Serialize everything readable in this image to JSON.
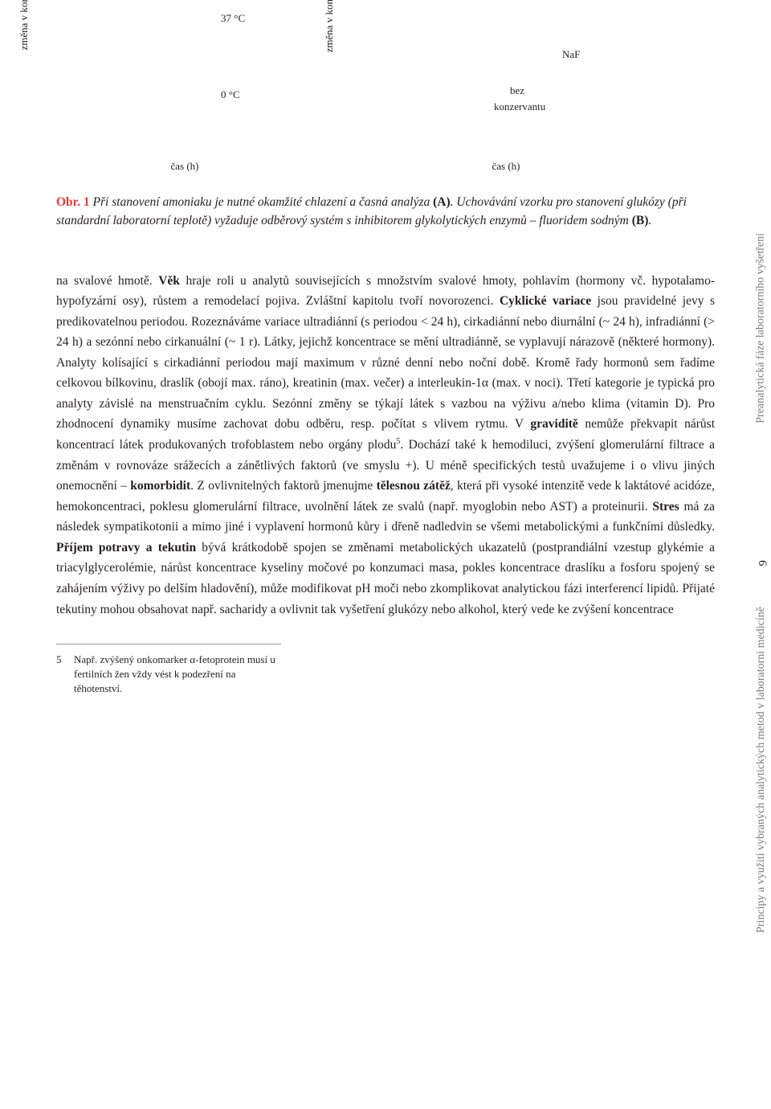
{
  "chart_a": {
    "y_label": "změna v koncentraci amoniaku (%)",
    "x_label": "čas (h)",
    "label_37c": "37 °C",
    "label_0c": "0 °C"
  },
  "chart_b": {
    "y_label": "změna v koncentraci glukózy (%)",
    "x_label": "čas (h)",
    "label_naf": "NaF",
    "label_bez": "bez",
    "label_konz": "konzervantu"
  },
  "figure": {
    "label": "Obr. 1",
    "caption_part1": "Při stanovení amoniaku je nutné okamžité chlazení a časná analýza ",
    "bold_a": "(A)",
    "caption_part2": ". Uchovávání vzorku pro stanovení glukózy (při standardní laboratorní teplotě) vyžaduje odběrový systém s inhibitorem glykolytických enzymů – fluoridem sodným ",
    "bold_b": "(B)",
    "caption_part3": "."
  },
  "body": {
    "p1_start": "na svalové hmotě. ",
    "p1_vek": "Věk",
    "p1_after_vek": " hraje roli u analytů souvisejících s množstvím svalové hmoty, pohlavím (hormony vč. hypotalamo-hypofyzární osy), růstem a remodelací pojiva. Zvláštní kapitolu tvoří novorozenci. ",
    "p1_cyklicke": "Cyklické variace",
    "p1_after_cyklicke": " jsou pravidelné jevy s predikovatelnou periodou. Rozeznáváme variace ultradiánní (s periodou < 24 h), cirkadiánní nebo diurnální (~ 24 h), infradiánní (> 24 h) a sezónní nebo cirkanuální (~ 1 r). Látky, jejichž koncentrace se mění ultradiánně, se vyplavují nárazově (některé hormony). Analyty kolísající s cirkadiánní periodou mají maximum v různé denní nebo noční době. Kromě řady hormonů sem řadíme celkovou bílkovinu, draslík (obojí max. ráno), kreatinin (max. večer) a interleukin-1α (max. v noci). Třetí kategorie je typická pro analyty závislé na menstruačním cyklu. Sezónní změny se týkají látek s vazbou na výživu a/nebo klima (vitamin D). Pro zhodnocení dynamiky musíme zachovat dobu odběru, resp. počítat s vlivem rytmu. V ",
    "p1_gravidite": "graviditě",
    "p1_after_gravidite": " nemůže překvapit nárůst koncentrací látek produkovaných trofoblastem nebo orgány plodu",
    "p1_sup5": "5",
    "p1_after_sup": ". Dochází také k hemodiluci, zvýšení glomerulární filtrace a změnám v rovnováze srážecích a zánětlivých faktorů (ve smyslu +). U méně specifických testů uvažujeme i o vlivu jiných onemocnění – ",
    "p1_komorbidit": "komorbidit",
    "p1_after_komorbidit": ". Z ovlivnitelných faktorů jmenujme ",
    "p1_telesnou": "tělesnou zátěž",
    "p1_after_telesnou": ", která při vysoké intenzitě vede k laktátové acidóze, hemokoncentraci, poklesu glomerulární filtrace, uvolnění látek ze svalů (např. myoglobin nebo AST) a proteinurii. ",
    "p1_stres": "Stres",
    "p1_after_stres": " má za následek sympatikotonii a mimo jiné i vyplavení hormonů kůry i dřeně nadledvin se všemi metabolickými a funkčními důsledky. ",
    "p1_prijem": "Příjem potravy a tekutin",
    "p1_after_prijem": " bývá krátkodobě spojen se změnami metabolických ukazatelů (postprandiální vzestup glykémie a triacylglycerolémie, nárůst koncentrace kyseliny močové po konzumaci masa, pokles koncentrace draslíku a fosforu spojený se zahájením výživy po delším hladovění), může modifikovat pH moči nebo zkomplikovat analytickou fázi interferencí lipidů. Přijaté tekutiny mohou obsahovat např. sacharidy a ovlivnit tak vyšetření glukózy nebo alkohol, který vede ke zvýšení koncentrace"
  },
  "footnote": {
    "num": "5",
    "text": "Např. zvýšený onkomarker α-fetoprotein musí u fertilních žen vždy vést k podezření na těhotenství."
  },
  "side": {
    "vertical1": "Preanalytická fáze laboratorního vyšetření",
    "page_num": "9",
    "vertical2": "Principy a využití vybraných analytických metod v laboratorní medicíně"
  }
}
